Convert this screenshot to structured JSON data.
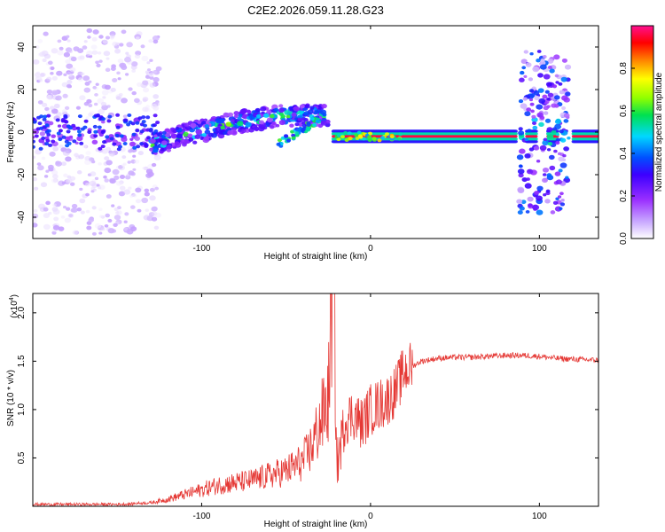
{
  "title": "C2E2.2026.059.11.28.G23",
  "chart_data": [
    {
      "type": "heatmap",
      "xlabel": "Height of straight line (km)",
      "ylabel": "Frequency (Hz)",
      "xlim": [
        -200,
        135
      ],
      "ylim": [
        -50,
        50
      ],
      "x_ticks": [
        -100,
        0,
        100
      ],
      "y_ticks": [
        -40,
        -20,
        0,
        20,
        40
      ],
      "colorbar": {
        "label": "Normalized spectral amplitude",
        "range": [
          0,
          1
        ],
        "ticks": [
          "0.0",
          "0.2",
          "0.4",
          "0.6",
          "0.8"
        ],
        "colors": [
          "#ffffff",
          "#c8a8ff",
          "#9b30ff",
          "#3c00ff",
          "#0050ff",
          "#00d8ff",
          "#00e050",
          "#90ff00",
          "#ffff00",
          "#ff8000",
          "#ff0000",
          "#ff1090"
        ]
      },
      "regions": [
        {
          "name": "noise",
          "x_range": [
            -200,
            -125
          ],
          "freq_center": 0,
          "freq_spread": 48,
          "amplitude": 0.05
        },
        {
          "name": "curve",
          "x_range": [
            -130,
            -25
          ],
          "freq_at_start": -6,
          "freq_at_end": 8,
          "amplitude": 0.3
        },
        {
          "name": "band",
          "x_range": [
            -22,
            135
          ],
          "freq": -2,
          "amplitude": 0.95
        },
        {
          "name": "burst",
          "x_range": [
            88,
            118
          ],
          "freq_center": 0,
          "freq_spread": 38,
          "amplitude": 0.2
        }
      ]
    },
    {
      "type": "line",
      "xlabel": "Height of straight line (km)",
      "ylabel": "SNR (10 * v/v)",
      "y_multiplier": "(x10",
      "y_multiplier_exp": "4",
      "xlim": [
        -200,
        135
      ],
      "ylim": [
        0,
        2.2
      ],
      "x_ticks": [
        -100,
        0,
        100
      ],
      "y_ticks": [
        "0.5",
        "1.0",
        "1.5",
        "2.0"
      ],
      "y_tick_values": [
        0.5,
        1.0,
        1.5,
        2.0
      ],
      "color": "#e53935",
      "series": [
        {
          "x": [
            -200,
            -150,
            -130,
            -120,
            -110,
            -100,
            -90,
            -80,
            -70,
            -60,
            -50,
            -40,
            -35,
            -30,
            -25,
            -22,
            -20,
            -15,
            -10,
            -5,
            0,
            5,
            10,
            15,
            20,
            25,
            30,
            40,
            50,
            60,
            70,
            80,
            90,
            100,
            110,
            120,
            135
          ],
          "y": [
            0.02,
            0.02,
            0.03,
            0.06,
            0.1,
            0.14,
            0.18,
            0.2,
            0.22,
            0.26,
            0.3,
            0.38,
            0.5,
            0.7,
            0.9,
            2.15,
            0.4,
            0.9,
            0.95,
            0.85,
            1.0,
            1.05,
            1.1,
            1.2,
            1.4,
            1.45,
            1.5,
            1.53,
            1.54,
            1.54,
            1.55,
            1.56,
            1.56,
            1.55,
            1.53,
            1.52,
            1.51
          ]
        }
      ]
    }
  ]
}
